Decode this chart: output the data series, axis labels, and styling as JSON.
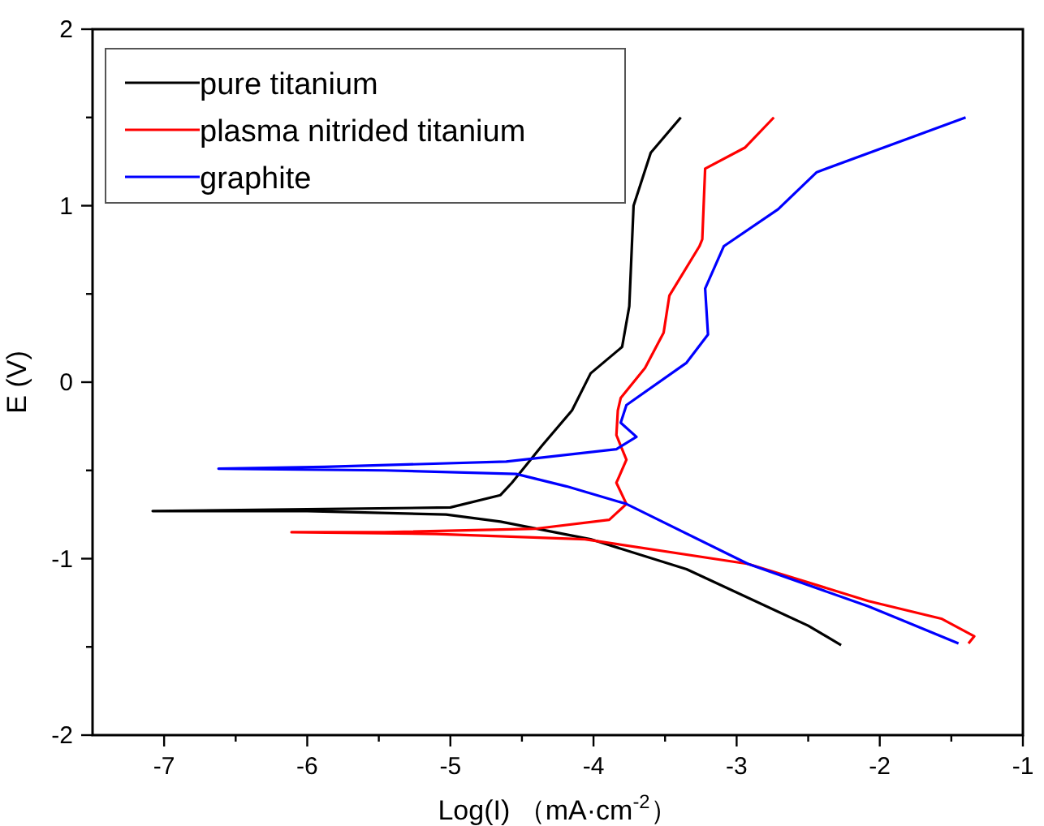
{
  "chart_data": {
    "type": "line",
    "xlabel": "Log(I) （mA·cm$^{-2}$）",
    "ylabel": "E (V)",
    "xlim": [
      -7.5,
      -1
    ],
    "ylim": [
      -2,
      2
    ],
    "xticks": [
      -7,
      {
        "value": -6.5,
        "label": null
      },
      -6,
      {
        "value": -5.5,
        "label": null
      },
      -5,
      {
        "value": -4.5,
        "label": null
      },
      -4,
      {
        "value": -3.5,
        "label": null
      },
      -3,
      {
        "value": -2.5,
        "label": null
      },
      -2,
      {
        "value": -1.5,
        "label": null
      },
      -1
    ],
    "yticks": [
      -2,
      {
        "value": -1.5,
        "label": null
      },
      -1,
      {
        "value": -0.5,
        "label": null
      },
      0,
      {
        "value": 0.5,
        "label": null
      },
      1,
      {
        "value": 1.5,
        "label": null
      },
      2
    ],
    "grid": false,
    "legend": "top left",
    "marker": "none",
    "line_style": "solid",
    "series": [
      {
        "name": "pure titanium",
        "color": "#000000",
        "x": [
          -2.27,
          -2.5,
          -3.35,
          -4.02,
          -4.65,
          -5.03,
          -6,
          -7.08,
          -6,
          -5,
          -4.65,
          -4.57,
          -4.36,
          -4.15,
          -4.02,
          -3.8,
          -3.75,
          -3.72,
          -3.6,
          -3.39
        ],
        "values": [
          -1.49,
          -1.38,
          -1.06,
          -0.89,
          -0.79,
          -0.75,
          -0.73,
          -0.73,
          -0.72,
          -0.71,
          -0.64,
          -0.57,
          -0.36,
          -0.16,
          0.05,
          0.2,
          0.43,
          1.0,
          1.3,
          1.5
        ]
      },
      {
        "name": "plasma nitrided titanium",
        "color": "#ff0000",
        "x": [
          -1.38,
          -1.34,
          -1.57,
          -2.08,
          -2.92,
          -4.06,
          -5.1,
          -6.11,
          -5.46,
          -4.4,
          -3.89,
          -3.77,
          -3.84,
          -3.77,
          -3.84,
          -3.83,
          -3.81,
          -3.64,
          -3.51,
          -3.47,
          -3.26,
          -3.24,
          -3.22,
          -2.94,
          -2.74
        ],
        "values": [
          -1.48,
          -1.44,
          -1.34,
          -1.24,
          -1.03,
          -0.89,
          -0.86,
          -0.85,
          -0.85,
          -0.83,
          -0.78,
          -0.69,
          -0.57,
          -0.44,
          -0.3,
          -0.16,
          -0.09,
          0.08,
          0.28,
          0.49,
          0.77,
          0.81,
          1.21,
          1.33,
          1.5
        ]
      },
      {
        "name": "graphite",
        "color": "#0000ff",
        "x": [
          -1.45,
          -2.08,
          -2.92,
          -3.77,
          -4.19,
          -4.54,
          -5.46,
          -6.62,
          -5.88,
          -4.61,
          -3.84,
          -3.7,
          -3.81,
          -3.77,
          -3.35,
          -3.2,
          -3.22,
          -3.09,
          -2.71,
          -2.44,
          -1.4
        ],
        "values": [
          -1.48,
          -1.27,
          -1.03,
          -0.69,
          -0.59,
          -0.52,
          -0.5,
          -0.49,
          -0.48,
          -0.45,
          -0.38,
          -0.31,
          -0.23,
          -0.13,
          0.11,
          0.27,
          0.53,
          0.77,
          0.98,
          1.19,
          1.5
        ]
      }
    ]
  }
}
